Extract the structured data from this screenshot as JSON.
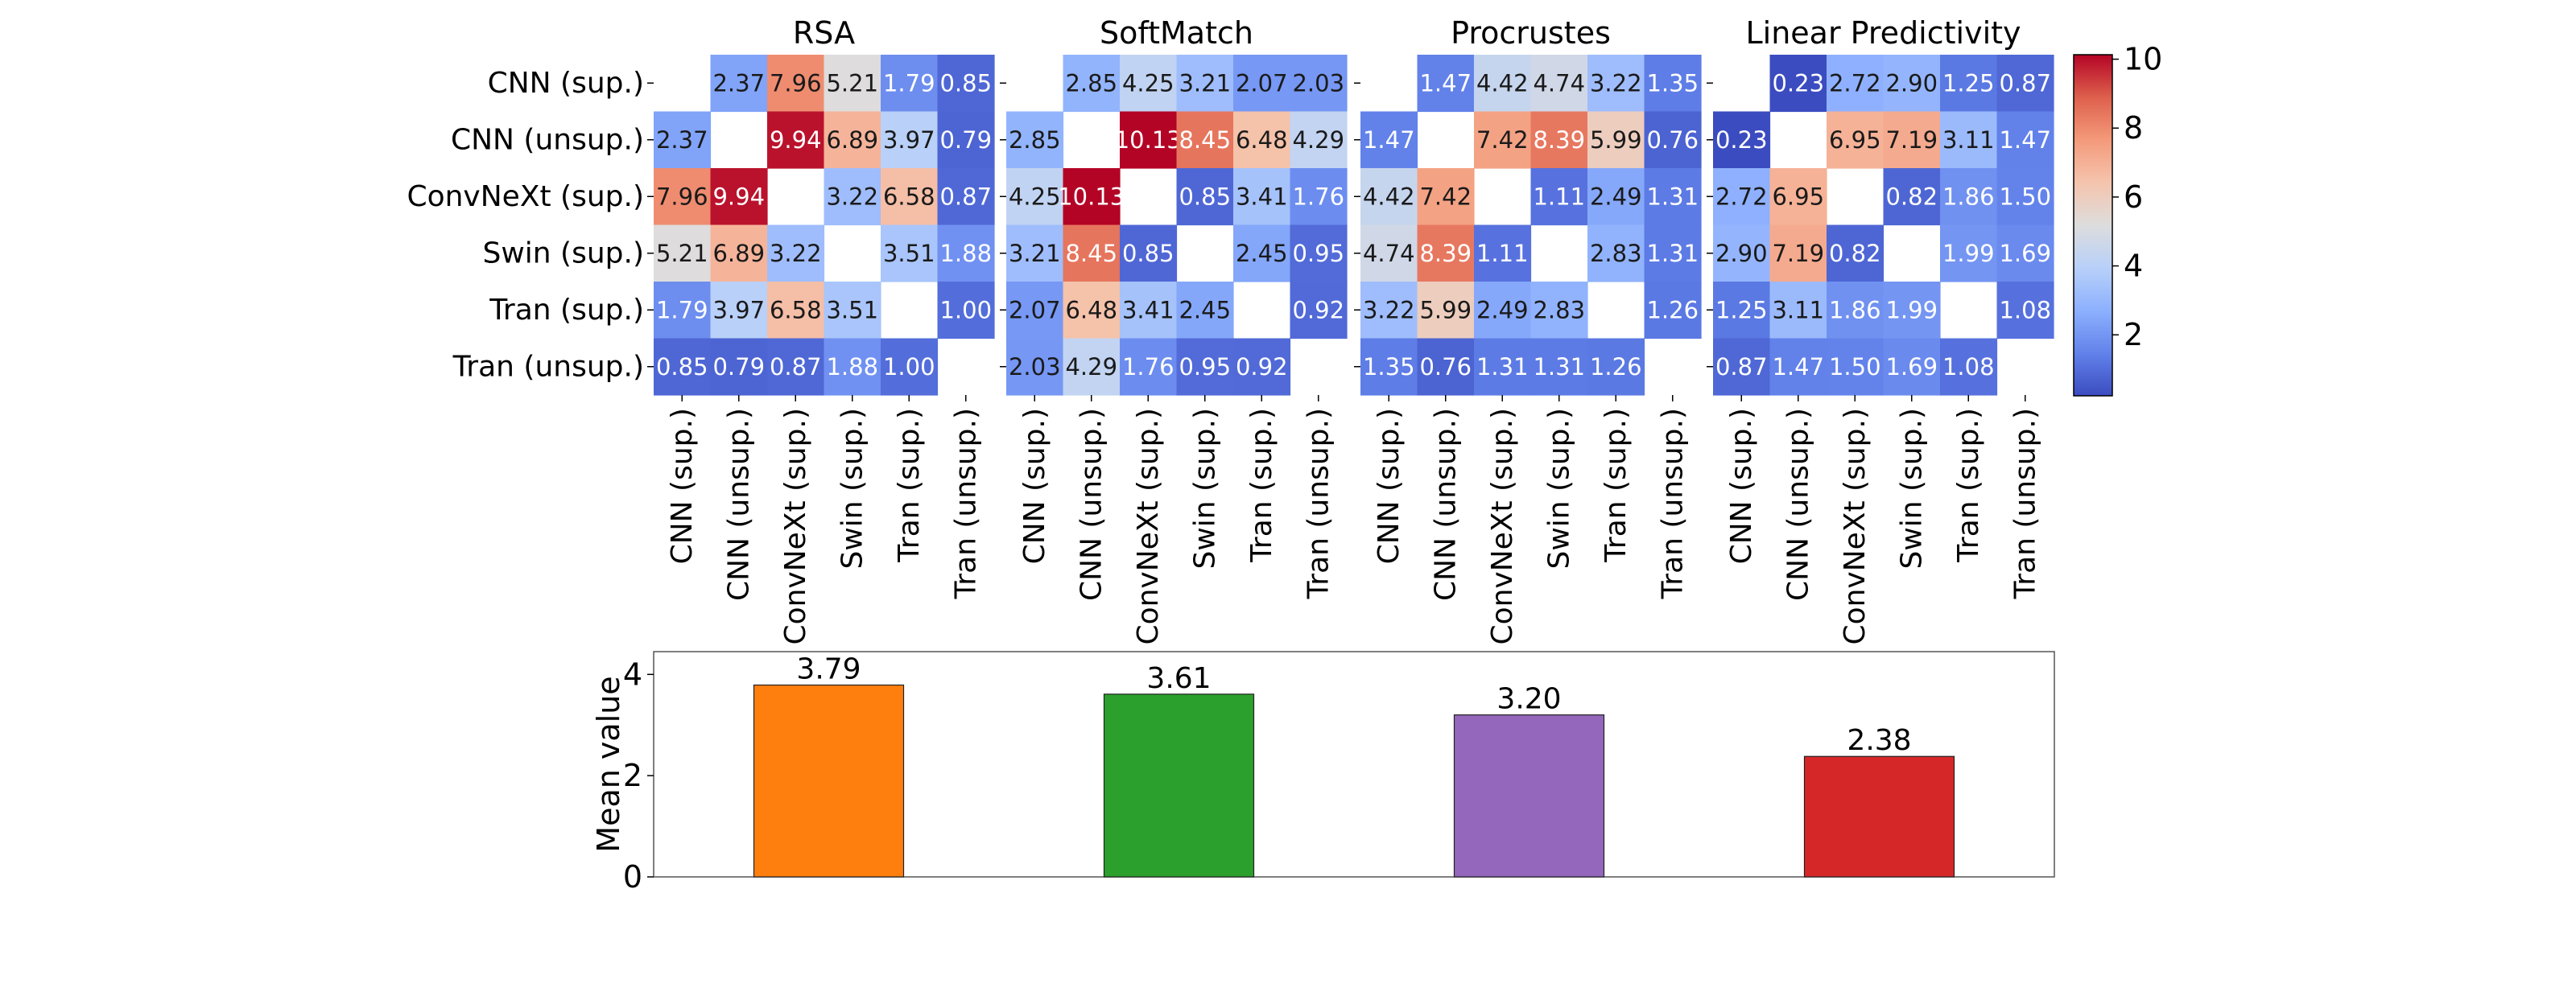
{
  "chart_data": [
    {
      "type": "heatmap",
      "panels": [
        {
          "title": "RSA",
          "values": [
            [
              null,
              2.37,
              7.96,
              5.21,
              1.79,
              0.85
            ],
            [
              2.37,
              null,
              9.94,
              6.89,
              3.97,
              0.79
            ],
            [
              7.96,
              9.94,
              null,
              3.22,
              6.58,
              0.87
            ],
            [
              5.21,
              6.89,
              3.22,
              null,
              3.51,
              1.88
            ],
            [
              1.79,
              3.97,
              6.58,
              3.51,
              null,
              1.0
            ],
            [
              0.85,
              0.79,
              0.87,
              1.88,
              1.0,
              null
            ]
          ],
          "labels": [
            [
              "",
              "2.37",
              "7.96",
              "5.21",
              "1.79",
              "0.85"
            ],
            [
              "2.37",
              "",
              "9.94",
              "6.89",
              "3.97",
              "0.79"
            ],
            [
              "7.96",
              "9.94",
              "",
              "3.22",
              "6.58",
              "0.87"
            ],
            [
              "5.21",
              "6.89",
              "3.22",
              "",
              "3.51",
              "1.88"
            ],
            [
              "1.79",
              "3.97",
              "6.58",
              "3.51",
              "",
              "1.00"
            ],
            [
              "0.85",
              "0.79",
              "0.87",
              "1.88",
              "1.00",
              ""
            ]
          ]
        },
        {
          "title": "SoftMatch",
          "values": [
            [
              null,
              2.85,
              4.25,
              3.21,
              2.07,
              2.03
            ],
            [
              2.85,
              null,
              10.13,
              8.45,
              6.48,
              4.29
            ],
            [
              4.25,
              10.13,
              null,
              0.85,
              3.41,
              1.76
            ],
            [
              3.21,
              8.45,
              0.85,
              null,
              2.45,
              0.95
            ],
            [
              2.07,
              6.48,
              3.41,
              2.45,
              null,
              0.92
            ],
            [
              2.03,
              4.29,
              1.76,
              0.95,
              0.92,
              null
            ]
          ],
          "labels": [
            [
              "",
              "2.85",
              "4.25",
              "3.21",
              "2.07",
              "2.03"
            ],
            [
              "2.85",
              "",
              "10.13",
              "8.45",
              "6.48",
              "4.29"
            ],
            [
              "4.25",
              "10.13",
              "",
              "0.85",
              "3.41",
              "1.76"
            ],
            [
              "3.21",
              "8.45",
              "0.85",
              "",
              "2.45",
              "0.95"
            ],
            [
              "2.07",
              "6.48",
              "3.41",
              "2.45",
              "",
              "0.92"
            ],
            [
              "2.03",
              "4.29",
              "1.76",
              "0.95",
              "0.92",
              ""
            ]
          ]
        },
        {
          "title": "Procrustes",
          "values": [
            [
              null,
              1.47,
              4.42,
              4.74,
              3.22,
              1.35
            ],
            [
              1.47,
              null,
              7.42,
              8.39,
              5.99,
              0.76
            ],
            [
              4.42,
              7.42,
              null,
              1.11,
              2.49,
              1.31
            ],
            [
              4.74,
              8.39,
              1.11,
              null,
              2.83,
              1.31
            ],
            [
              3.22,
              5.99,
              2.49,
              2.83,
              null,
              1.26
            ],
            [
              1.35,
              0.76,
              1.31,
              1.31,
              1.26,
              null
            ]
          ],
          "labels": [
            [
              "",
              "1.47",
              "4.42",
              "4.74",
              "3.22",
              "1.35"
            ],
            [
              "1.47",
              "",
              "7.42",
              "8.39",
              "5.99",
              "0.76"
            ],
            [
              "4.42",
              "7.42",
              "",
              "1.11",
              "2.49",
              "1.31"
            ],
            [
              "4.74",
              "8.39",
              "1.11",
              "",
              "2.83",
              "1.31"
            ],
            [
              "3.22",
              "5.99",
              "2.49",
              "2.83",
              "",
              "1.26"
            ],
            [
              "1.35",
              "0.76",
              "1.31",
              "1.31",
              "1.26",
              ""
            ]
          ]
        },
        {
          "title": "Linear Predictivity",
          "values": [
            [
              null,
              0.23,
              2.72,
              2.9,
              1.25,
              0.87
            ],
            [
              0.23,
              null,
              6.95,
              7.19,
              3.11,
              1.47
            ],
            [
              2.72,
              6.95,
              null,
              0.82,
              1.86,
              1.5
            ],
            [
              2.9,
              7.19,
              0.82,
              null,
              1.99,
              1.69
            ],
            [
              1.25,
              3.11,
              1.86,
              1.99,
              null,
              1.08
            ],
            [
              0.87,
              1.47,
              1.5,
              1.69,
              1.08,
              null
            ]
          ],
          "labels": [
            [
              "",
              "0.23",
              "2.72",
              "2.90",
              "1.25",
              "0.87"
            ],
            [
              "0.23",
              "",
              "6.95",
              "7.19",
              "3.11",
              "1.47"
            ],
            [
              "2.72",
              "6.95",
              "",
              "0.82",
              "1.86",
              "1.50"
            ],
            [
              "2.90",
              "7.19",
              "0.82",
              "",
              "1.99",
              "1.69"
            ],
            [
              "1.25",
              "3.11",
              "1.86",
              "1.99",
              "",
              "1.08"
            ],
            [
              "0.87",
              "1.47",
              "1.50",
              "1.69",
              "1.08",
              ""
            ]
          ]
        }
      ],
      "row_labels": [
        "CNN (sup.)",
        "CNN (unsup.)",
        "ConvNeXt (sup.)",
        "Swin (sup.)",
        "Tran (sup.)",
        "Tran (unsup.)"
      ],
      "col_labels": [
        "CNN (sup.)",
        "CNN (unsup.)",
        "ConvNeXt (sup.)",
        "Swin (sup.)",
        "Tran (sup.)",
        "Tran (unsup.)"
      ],
      "colormap": "coolwarm",
      "vmin": 0.23,
      "vmax": 10.13,
      "colorbar_ticks": [
        2,
        4,
        6,
        8,
        10
      ],
      "colorbar_tick_labels": [
        "2",
        "4",
        "6",
        "8",
        "10"
      ]
    },
    {
      "type": "bar",
      "categories": [
        "RSA",
        "SoftMatch",
        "Procrustes",
        "Linear Predictivity"
      ],
      "values": [
        3.79,
        3.61,
        3.2,
        2.38
      ],
      "value_labels": [
        "3.79",
        "3.61",
        "3.20",
        "2.38"
      ],
      "colors": [
        "#ff7f0e",
        "#2ca02c",
        "#9467bd",
        "#d62728"
      ],
      "ylabel": "Mean value",
      "ylim": [
        0,
        4.45
      ],
      "yticks": [
        0,
        2,
        4
      ],
      "ytick_labels": [
        "0",
        "2",
        "4"
      ],
      "xticks_visible": false
    }
  ]
}
